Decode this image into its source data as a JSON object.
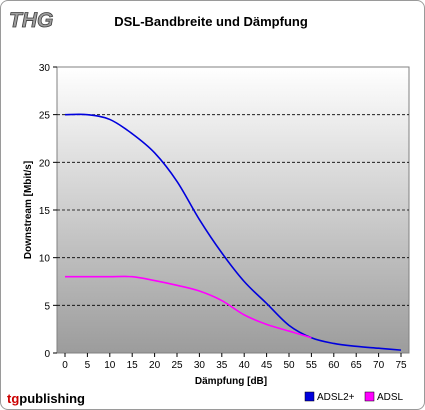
{
  "logo_text": "THG",
  "publisher": {
    "part1": "tg",
    "part2": "publishing"
  },
  "colors": {
    "adsl2plus": "#0000dd",
    "adsl": "#ff00ff",
    "publisher_tg": "#cc0000",
    "publisher_rest": "#000000",
    "plot_top": "#ffffff",
    "plot_bottom": "#9c9c9c"
  },
  "chart_data": {
    "type": "line",
    "title": "DSL-Bandbreite und Dämpfung",
    "xlabel": "Dämpfung [dB]",
    "ylabel": "Downstream [Mbit/s]",
    "xlim": [
      0,
      75
    ],
    "ylim": [
      0,
      30
    ],
    "x_ticks": [
      0,
      5,
      10,
      15,
      20,
      25,
      30,
      35,
      40,
      45,
      50,
      55,
      60,
      65,
      70,
      75
    ],
    "y_ticks": [
      0,
      5,
      10,
      15,
      20,
      25,
      30
    ],
    "grid": "horizontal-dashed",
    "legend_position": "bottom-right",
    "series": [
      {
        "name": "ADSL2+",
        "x": [
          0,
          5,
          10,
          15,
          20,
          25,
          30,
          35,
          40,
          45,
          50,
          55,
          60,
          65,
          70,
          75
        ],
        "y": [
          25,
          25,
          24.5,
          23,
          21,
          18,
          14,
          10.5,
          7.5,
          5.2,
          2.9,
          1.6,
          1.0,
          0.7,
          0.5,
          0.3
        ]
      },
      {
        "name": "ADSL",
        "x": [
          0,
          5,
          10,
          15,
          20,
          25,
          30,
          35,
          40,
          45,
          50,
          55
        ],
        "y": [
          8,
          8,
          8,
          8,
          7.6,
          7.1,
          6.5,
          5.5,
          4,
          3,
          2.3,
          1.6
        ]
      }
    ]
  }
}
